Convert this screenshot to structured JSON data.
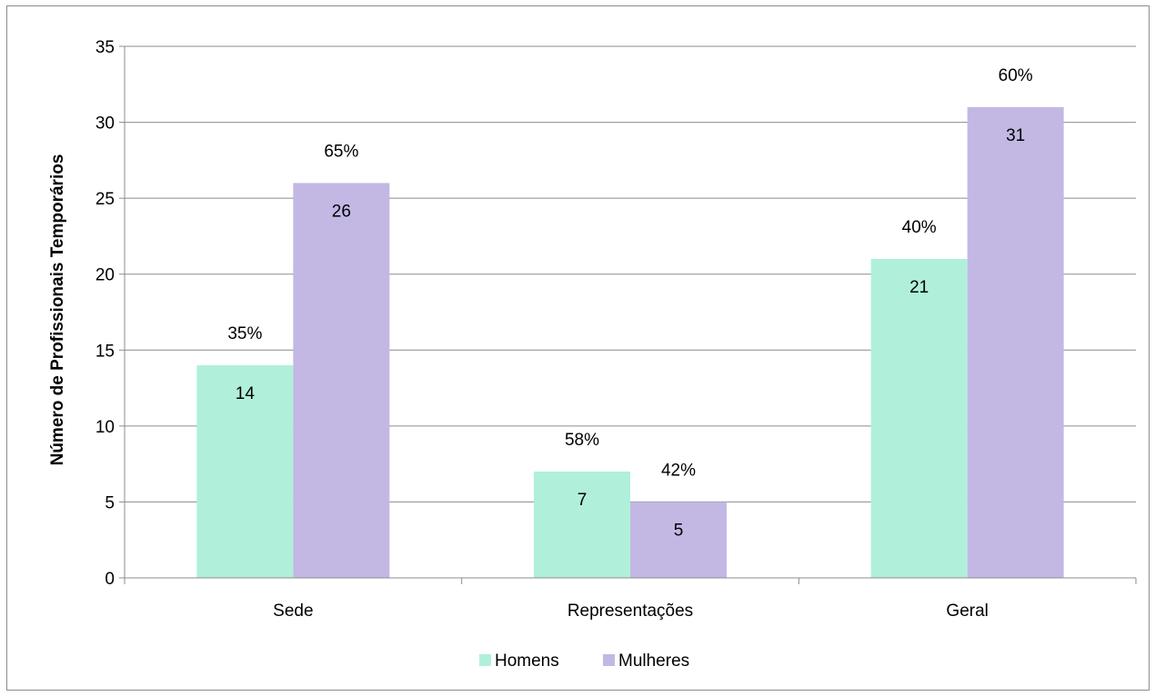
{
  "chart_data": {
    "type": "bar",
    "title": "",
    "xlabel": "",
    "ylabel": "Número de Profissionais Temporários",
    "ylim": [
      0,
      35
    ],
    "yticks": [
      0,
      5,
      10,
      15,
      20,
      25,
      30,
      35
    ],
    "yticks_labels": [
      "0",
      "5",
      "10",
      "15",
      "20",
      "25",
      "30",
      "35"
    ],
    "grid": true,
    "legend_position": "bottom",
    "categories": [
      "Sede",
      "Representações",
      "Geral"
    ],
    "series": [
      {
        "name": "Homens",
        "color": "#b0f0da",
        "values": [
          14,
          7,
          21
        ],
        "value_labels": [
          "14",
          "7",
          "21"
        ],
        "percent_labels": [
          "35%",
          "58%",
          "40%"
        ]
      },
      {
        "name": "Mulheres",
        "color": "#c3b8e4",
        "values": [
          26,
          5,
          31
        ],
        "value_labels": [
          "26",
          "5",
          "31"
        ],
        "percent_labels": [
          "65%",
          "42%",
          "60%"
        ]
      }
    ]
  }
}
